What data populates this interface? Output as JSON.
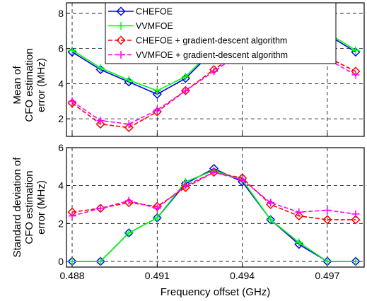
{
  "chart_data": [
    {
      "type": "line",
      "title": "",
      "xlabel": "",
      "ylabel": [
        "Mean of",
        "CFO estimation",
        "error (MHz)"
      ],
      "xlim": [
        0.4878,
        0.4983
      ],
      "ylim": [
        1,
        8.6
      ],
      "xticks": [
        0.488,
        0.491,
        0.494,
        0.497
      ],
      "yticks": [
        2,
        4,
        6,
        8
      ],
      "grid": true,
      "legend": "top-right",
      "x": [
        0.488,
        0.489,
        0.49,
        0.491,
        0.492,
        0.493,
        0.494,
        0.495,
        0.496,
        0.497,
        0.498
      ],
      "series": [
        {
          "name": "CHEFOE",
          "color": "#0000ff",
          "marker": "diamond",
          "dash": "solid",
          "values": [
            5.8,
            4.8,
            4.1,
            3.4,
            4.3,
            5.9,
            7.3,
            8.2,
            7.8,
            6.8,
            5.8
          ]
        },
        {
          "name": "VVMFOE",
          "color": "#00ff00",
          "marker": "plus",
          "dash": "solid",
          "values": [
            5.9,
            4.9,
            4.2,
            3.6,
            4.4,
            6.0,
            7.4,
            8.0,
            7.7,
            6.9,
            5.9
          ]
        },
        {
          "name": "CHEFOE + gradient-descent algorithm",
          "color": "#ff0000",
          "marker": "diamond",
          "dash": "dashed",
          "values": [
            2.9,
            1.7,
            1.5,
            2.4,
            3.6,
            4.8,
            5.9,
            6.9,
            6.4,
            5.5,
            4.7
          ]
        },
        {
          "name": "VVMFOE + gradient-descent algorithm",
          "color": "#ff00ff",
          "marker": "plus",
          "dash": "dashed",
          "values": [
            3.0,
            1.9,
            1.7,
            2.5,
            3.6,
            4.7,
            5.8,
            6.6,
            6.2,
            5.4,
            4.5
          ]
        }
      ]
    },
    {
      "type": "line",
      "title": "",
      "xlabel": "Frequency offset (GHz)",
      "ylabel": [
        "Standard deviation of",
        "CFO estimation",
        "error (MHz)"
      ],
      "xlim": [
        0.4878,
        0.4983
      ],
      "ylim": [
        -0.3,
        6
      ],
      "xticks": [
        0.488,
        0.491,
        0.494,
        0.497
      ],
      "xtick_labels": [
        "0.488",
        "0.491",
        "0.494",
        "0.497"
      ],
      "yticks": [
        0,
        2,
        4,
        6
      ],
      "grid": true,
      "x": [
        0.488,
        0.489,
        0.49,
        0.491,
        0.492,
        0.493,
        0.494,
        0.495,
        0.496,
        0.497,
        0.498
      ],
      "series": [
        {
          "name": "CHEFOE",
          "color": "#0000ff",
          "marker": "diamond",
          "dash": "solid",
          "values": [
            0,
            0,
            1.5,
            2.3,
            4.1,
            4.9,
            4.2,
            2.2,
            0.9,
            0,
            0
          ]
        },
        {
          "name": "VVMFOE",
          "color": "#00ff00",
          "marker": "plus",
          "dash": "solid",
          "values": [
            0,
            0,
            1.5,
            2.3,
            4.2,
            4.8,
            4.3,
            2.2,
            1.0,
            0,
            0
          ]
        },
        {
          "name": "CHEFOE + gradient-descent algorithm",
          "color": "#ff0000",
          "marker": "diamond",
          "dash": "dashed",
          "values": [
            2.6,
            2.8,
            3.1,
            2.9,
            3.9,
            4.7,
            4.4,
            3.0,
            2.4,
            2.2,
            2.2
          ]
        },
        {
          "name": "VVMFOE + gradient-descent algorithm",
          "color": "#ff00ff",
          "marker": "plus",
          "dash": "dashed",
          "values": [
            2.4,
            2.8,
            3.2,
            2.8,
            4.0,
            4.7,
            4.3,
            3.1,
            2.6,
            2.7,
            2.5
          ]
        }
      ]
    }
  ]
}
